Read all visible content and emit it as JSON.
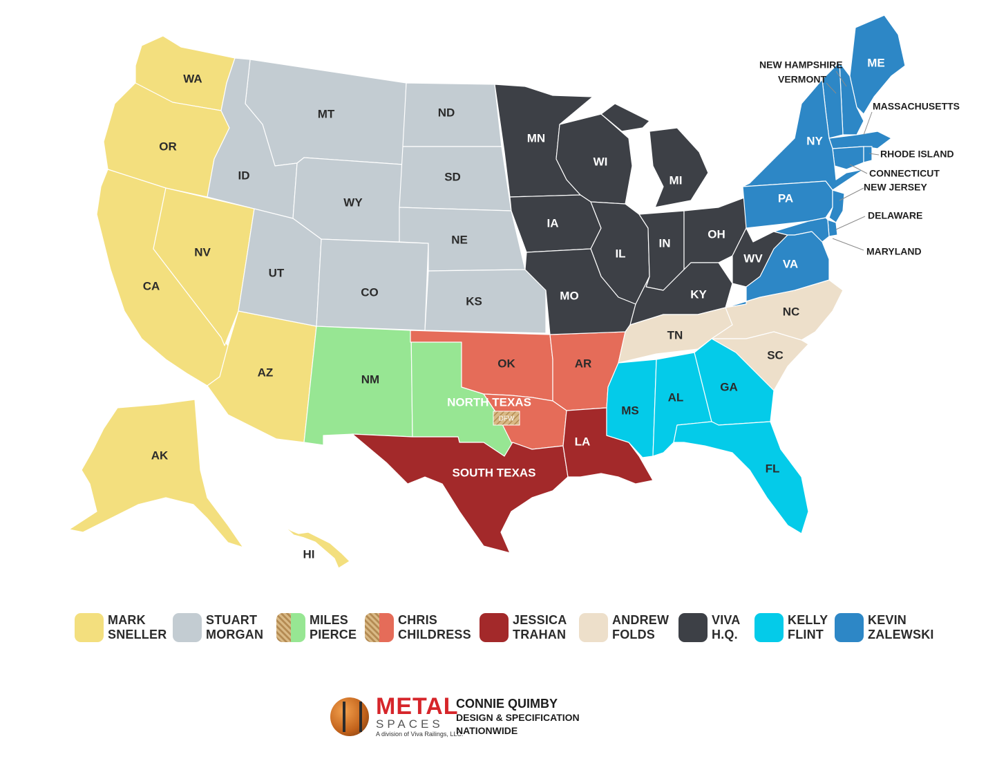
{
  "colors": {
    "mark_sneller": "#f3df7e",
    "stuart_morgan": "#c3ccd2",
    "miles_pierce": "#97e693",
    "chris_childress": "#e56c59",
    "jessica_trahan": "#a3292a",
    "andrew_folds": "#eddfca",
    "viva_hq": "#3d4046",
    "kelly_flint": "#04cbe9",
    "kevin_zalewski": "#2d87c6",
    "dfw_hatch": "#c9a66b"
  },
  "map": {
    "states": {
      "WA": "WA",
      "OR": "OR",
      "CA": "CA",
      "NV": "NV",
      "AZ": "AZ",
      "AK": "AK",
      "HI": "HI",
      "MT": "MT",
      "ID": "ID",
      "WY": "WY",
      "UT": "UT",
      "CO": "CO",
      "ND": "ND",
      "SD": "SD",
      "NE": "NE",
      "KS": "KS",
      "NM": "NM",
      "OK": "OK",
      "AR": "AR",
      "LA": "LA",
      "MN": "MN",
      "WI": "WI",
      "MI": "MI",
      "IA": "IA",
      "IL": "IL",
      "IN": "IN",
      "OH": "OH",
      "MO": "MO",
      "KY": "KY",
      "WV": "WV",
      "TN": "TN",
      "NC": "NC",
      "SC": "SC",
      "MS": "MS",
      "AL": "AL",
      "GA": "GA",
      "FL": "FL",
      "ME": "ME",
      "NY": "NY",
      "PA": "PA",
      "VA": "VA"
    },
    "regions": {
      "north_texas": "NORTH TEXAS",
      "south_texas": "SOUTH TEXAS",
      "dfw": "DFW"
    },
    "small_states": {
      "new_hampshire": "NEW HAMPSHIRE",
      "vermont": "VERMONT",
      "massachusetts": "MASSACHUSETTS",
      "rhode_island": "RHODE ISLAND",
      "connecticut": "CONNECTICUT",
      "new_jersey": "NEW JERSEY",
      "delaware": "DELAWARE",
      "maryland": "MARYLAND"
    }
  },
  "legend": [
    {
      "first": "MARK",
      "last": "SNELLER",
      "color": "#f3df7e",
      "pattern": "solid"
    },
    {
      "first": "STUART",
      "last": "MORGAN",
      "color": "#c3ccd2",
      "pattern": "solid"
    },
    {
      "first": "MILES",
      "last": "PIERCE",
      "color": "#97e693",
      "pattern": "hatch-split"
    },
    {
      "first": "CHRIS",
      "last": "CHILDRESS",
      "color": "#e56c59",
      "pattern": "hatch-split"
    },
    {
      "first": "JESSICA",
      "last": "TRAHAN",
      "color": "#a3292a",
      "pattern": "solid"
    },
    {
      "first": "ANDREW",
      "last": "FOLDS",
      "color": "#eddfca",
      "pattern": "solid"
    },
    {
      "first": "VIVA",
      "last": "H.Q.",
      "color": "#3d4046",
      "pattern": "solid"
    },
    {
      "first": "KELLY",
      "last": "FLINT",
      "color": "#04cbe9",
      "pattern": "solid"
    },
    {
      "first": "KEVIN",
      "last": "ZALEWSKI",
      "color": "#2d87c6",
      "pattern": "solid"
    }
  ],
  "footer": {
    "brand_top": "METAL",
    "brand_sub": "SPACES",
    "brand_tag": "A division of Viva Railings, LLC.",
    "badge_icon": "viva-badge-icon",
    "rep_name": "CONNIE QUIMBY",
    "rep_title": "DESIGN & SPECIFICATION",
    "rep_scope": "NATIONWIDE"
  }
}
